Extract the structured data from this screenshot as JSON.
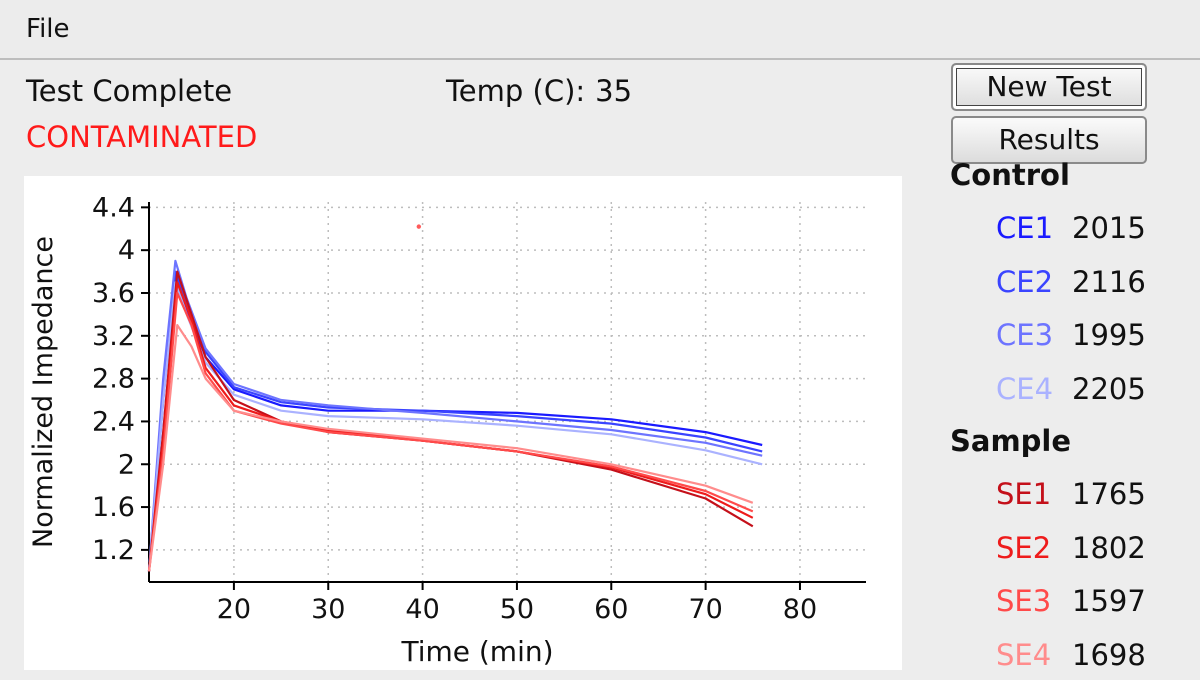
{
  "menu": {
    "file_label": "File"
  },
  "status": {
    "state": "Test Complete",
    "result": "CONTAMINATED",
    "result_color": "#ff1a1a",
    "temp_label": "Temp (C):",
    "temp_value": "35"
  },
  "buttons": {
    "new_test": "New Test",
    "results": "Results"
  },
  "legend": {
    "control_title": "Control",
    "sample_title": "Sample",
    "control": [
      {
        "code": "CE1",
        "value": "2015",
        "color": "#1a1aff"
      },
      {
        "code": "CE2",
        "value": "2116",
        "color": "#3a44ff"
      },
      {
        "code": "CE3",
        "value": "1995",
        "color": "#6d74ff"
      },
      {
        "code": "CE4",
        "value": "2205",
        "color": "#aab2ff"
      }
    ],
    "sample": [
      {
        "code": "SE1",
        "value": "1765",
        "color": "#c4101a"
      },
      {
        "code": "SE2",
        "value": "1802",
        "color": "#ee1b1b"
      },
      {
        "code": "SE3",
        "value": "1597",
        "color": "#ff4a4a"
      },
      {
        "code": "SE4",
        "value": "1698",
        "color": "#ff8c8c"
      }
    ]
  },
  "chart_data": {
    "type": "line",
    "title": "",
    "xlabel": "Time (min)",
    "ylabel": "Normalized Impedance",
    "xlim": [
      11,
      87
    ],
    "ylim": [
      0.9,
      4.45
    ],
    "xticks": [
      20,
      30,
      40,
      50,
      60,
      70,
      80
    ],
    "yticks": [
      1.2,
      1.6,
      2,
      2.4,
      2.8,
      3.2,
      3.6,
      4,
      4.4
    ],
    "ytick_labels": [
      "1.2",
      "1.6",
      "2",
      "2.4",
      "2.8",
      "3.2",
      "3.6",
      "4",
      "4.4"
    ],
    "grid": true,
    "series": [
      {
        "name": "CE1",
        "color": "#1a1aff",
        "x": [
          11,
          12.5,
          13.8,
          15,
          17,
          20,
          25,
          30,
          40,
          50,
          60,
          70,
          76
        ],
        "y": [
          1.0,
          2.6,
          3.75,
          3.45,
          3.0,
          2.7,
          2.55,
          2.5,
          2.5,
          2.48,
          2.42,
          2.3,
          2.18
        ]
      },
      {
        "name": "CE2",
        "color": "#3a44ff",
        "x": [
          11,
          12.5,
          13.8,
          15,
          17,
          20,
          25,
          30,
          40,
          50,
          60,
          70,
          76
        ],
        "y": [
          1.0,
          2.7,
          3.8,
          3.5,
          3.05,
          2.72,
          2.58,
          2.53,
          2.5,
          2.45,
          2.38,
          2.25,
          2.12
        ]
      },
      {
        "name": "CE3",
        "color": "#6d74ff",
        "x": [
          11,
          12.5,
          13.8,
          15,
          17,
          20,
          25,
          30,
          40,
          50,
          60,
          70,
          76
        ],
        "y": [
          1.0,
          2.8,
          3.9,
          3.55,
          3.08,
          2.75,
          2.6,
          2.55,
          2.48,
          2.4,
          2.32,
          2.2,
          2.08
        ]
      },
      {
        "name": "CE4",
        "color": "#aab2ff",
        "x": [
          11,
          12.5,
          13.8,
          15,
          17,
          20,
          25,
          30,
          40,
          50,
          60,
          70,
          76
        ],
        "y": [
          1.0,
          2.6,
          3.7,
          3.4,
          2.95,
          2.65,
          2.5,
          2.45,
          2.42,
          2.36,
          2.28,
          2.13,
          2.0
        ]
      },
      {
        "name": "SE1",
        "color": "#c4101a",
        "x": [
          11,
          12.5,
          14,
          15.5,
          17,
          20,
          25,
          30,
          40,
          50,
          60,
          70,
          75
        ],
        "y": [
          1.0,
          2.3,
          3.8,
          3.4,
          3.0,
          2.6,
          2.4,
          2.3,
          2.22,
          2.12,
          1.95,
          1.68,
          1.42
        ]
      },
      {
        "name": "SE2",
        "color": "#ee1b1b",
        "x": [
          11,
          12.5,
          14,
          15.5,
          17,
          20,
          25,
          30,
          40,
          50,
          60,
          70,
          75
        ],
        "y": [
          1.0,
          2.2,
          3.7,
          3.35,
          2.9,
          2.55,
          2.4,
          2.32,
          2.22,
          2.12,
          1.97,
          1.72,
          1.5
        ]
      },
      {
        "name": "SE3",
        "color": "#ff4a4a",
        "x": [
          11,
          12.5,
          14,
          15.5,
          17,
          20,
          25,
          30,
          40,
          50,
          60,
          70,
          75
        ],
        "y": [
          1.0,
          2.1,
          3.6,
          3.3,
          2.85,
          2.5,
          2.38,
          2.3,
          2.22,
          2.12,
          1.98,
          1.75,
          1.56
        ]
      },
      {
        "name": "SE4",
        "color": "#ff8c8c",
        "x": [
          11,
          12.5,
          14,
          15.5,
          17,
          20,
          25,
          30,
          40,
          50,
          60,
          70,
          75
        ],
        "y": [
          1.0,
          2.0,
          3.3,
          3.1,
          2.8,
          2.5,
          2.4,
          2.33,
          2.24,
          2.15,
          2.0,
          1.8,
          1.64
        ]
      }
    ],
    "annotations": [
      {
        "x": 39.6,
        "y": 4.22,
        "color": "#ff5a5a"
      }
    ]
  }
}
